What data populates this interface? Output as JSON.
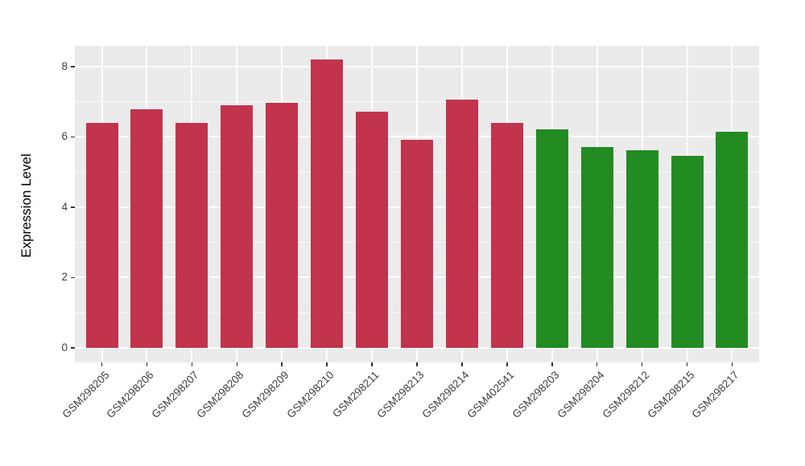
{
  "chart_data": {
    "type": "bar",
    "title": "",
    "xlabel": "",
    "ylabel": "Expression Level",
    "ylim": [
      -0.41,
      8.59
    ],
    "yticks_major": [
      0,
      2,
      4,
      6,
      8
    ],
    "yticks_minor": [
      1,
      3,
      5,
      7
    ],
    "grid": "on",
    "legend": "none",
    "panel_background": "#EBEBEB",
    "gridline_color": "#FFFFFF",
    "axis_text_color": "#404040",
    "categories": [
      "GSM298205",
      "GSM298206",
      "GSM298207",
      "GSM298208",
      "GSM298209",
      "GSM298210",
      "GSM298211",
      "GSM298213",
      "GSM298214",
      "GSM402541",
      "GSM298203",
      "GSM298204",
      "GSM298212",
      "GSM298215",
      "GSM298217"
    ],
    "values": [
      6.4,
      6.78,
      6.4,
      6.9,
      6.97,
      8.2,
      6.71,
      5.92,
      7.06,
      6.4,
      6.21,
      5.71,
      5.61,
      5.47,
      6.14
    ],
    "groups": [
      "red",
      "red",
      "red",
      "red",
      "red",
      "red",
      "red",
      "red",
      "red",
      "red",
      "green",
      "green",
      "green",
      "green",
      "green"
    ],
    "group_colors": {
      "red": "#C2334C",
      "green": "#228B22"
    }
  }
}
